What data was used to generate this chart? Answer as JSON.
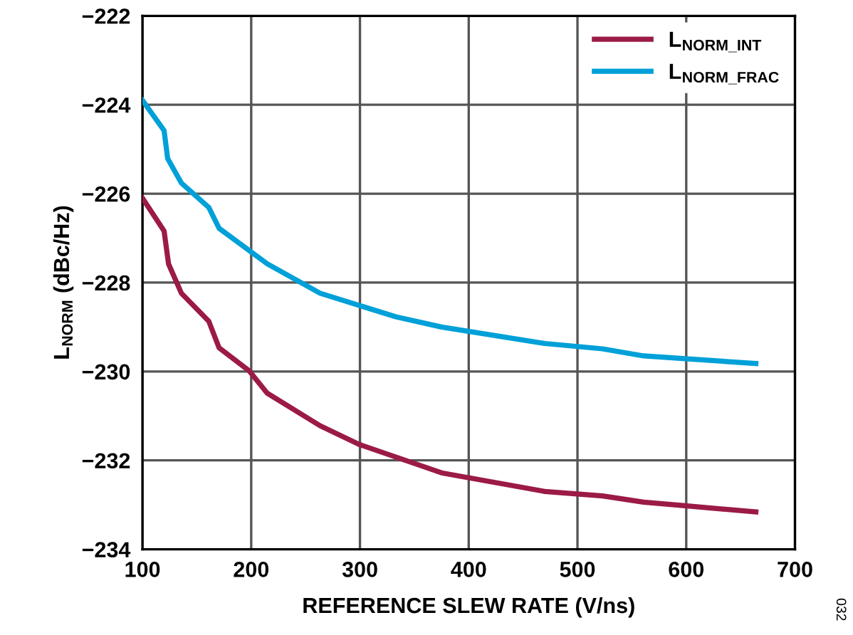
{
  "chart_data": {
    "type": "line",
    "xlabel": "REFERENCE SLEW RATE (V/ns)",
    "ylabel": "L$_{NORM}$ (dBc/Hz)",
    "xlim": [
      100,
      700
    ],
    "xticks": [
      100,
      200,
      300,
      400,
      500,
      600,
      700
    ],
    "ylim": [
      -234,
      -222
    ],
    "yticks": [
      {
        "value": -234,
        "label": "−234"
      },
      {
        "value": -232,
        "label": "−232"
      },
      {
        "value": -230,
        "label": "−230"
      },
      {
        "value": -228,
        "label": "−228"
      },
      {
        "value": -226,
        "label": "−226"
      },
      {
        "value": -224,
        "label": "−224"
      },
      {
        "value": -222,
        "label": "−222"
      }
    ],
    "grid": true,
    "legend": "top right",
    "marker": "none",
    "line_style": "solid",
    "annotations": [
      "032"
    ],
    "series": [
      {
        "name": "L$_{NORM_INT}$",
        "color": "#9b1b45",
        "x": [
          100,
          119.9,
          124,
          135.8,
          161,
          170.5,
          197.9,
          214.8,
          263.3,
          299.2,
          375,
          470,
          523,
          560.8,
          598.7,
          664
        ],
        "values": [
          -226.1,
          -226.84,
          -227.58,
          -228.24,
          -228.87,
          -229.47,
          -229.98,
          -230.49,
          -231.22,
          -231.64,
          -232.28,
          -232.7,
          -232.8,
          -232.94,
          -233.02,
          -233.16
        ]
      },
      {
        "name": "L$_{NORM_FRAC}$",
        "color": "#00a0d8",
        "x": [
          100,
          119.9,
          123.2,
          135.8,
          161,
          170.5,
          214.8,
          263.3,
          333,
          375,
          470,
          523,
          560.8,
          664
        ],
        "values": [
          -223.9,
          -224.58,
          -225.21,
          -225.76,
          -226.31,
          -226.78,
          -227.58,
          -228.24,
          -228.77,
          -229.0,
          -229.37,
          -229.49,
          -229.65,
          -229.82
        ]
      }
    ]
  }
}
